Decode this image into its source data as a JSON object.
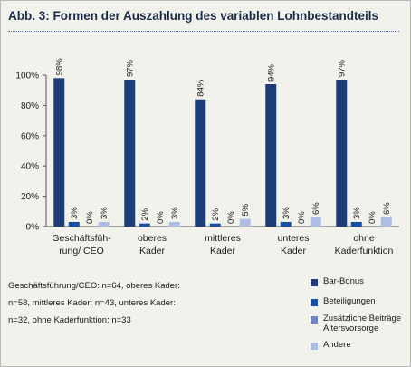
{
  "title": "Abb. 3: Formen der Auszahlung des variablen Lohnbestandteils",
  "note_lines": [
    "Geschäftsführung/CEO: n=64, oberes Kader:",
    "n=58, mittleres Kader: n=43, unteres Kader:",
    "n=32, ohne Kaderfunktion: n=33"
  ],
  "legend": [
    {
      "label": "Bar-Bonus",
      "color": "#1c3d77"
    },
    {
      "label": "Beteiligungen",
      "color": "#1a50a4"
    },
    {
      "label": "Zusätzliche Beiträge Altersvorsorge",
      "color": "#6e86c4"
    },
    {
      "label": "Andere",
      "color": "#adbde3"
    }
  ],
  "chart_data": {
    "type": "bar",
    "title": "Abb. 3: Formen der Auszahlung des variablen Lohnbestandteils",
    "categories": [
      [
        "Geschäftsfüh-",
        "rung/ CEO"
      ],
      [
        "oberes",
        "Kader"
      ],
      [
        "mittleres",
        "Kader"
      ],
      [
        "unteres",
        "Kader"
      ],
      [
        "ohne",
        "Kaderfunktion"
      ]
    ],
    "series": [
      {
        "name": "Bar-Bonus",
        "color": "#1c3d77",
        "values": [
          98,
          97,
          84,
          94,
          97
        ],
        "labels": [
          "98%",
          "97%",
          "84%",
          "94%",
          "97%"
        ]
      },
      {
        "name": "Beteiligungen",
        "color": "#1a50a4",
        "values": [
          3,
          2,
          2,
          3,
          3
        ],
        "labels": [
          "3%",
          "2%",
          "2%",
          "3%",
          "3%"
        ]
      },
      {
        "name": "Zusätzliche Beiträge Altersvorsorge",
        "color": "#6e86c4",
        "values": [
          0,
          0,
          0,
          0,
          0
        ],
        "labels": [
          "0%",
          "0%",
          "0%",
          "0%",
          "0%"
        ]
      },
      {
        "name": "Andere",
        "color": "#adbde3",
        "values": [
          3,
          3,
          5,
          6,
          6
        ],
        "labels": [
          "3%",
          "3%",
          "5%",
          "6%",
          "6%"
        ]
      }
    ],
    "yticks": [
      0,
      20,
      40,
      60,
      80,
      100
    ],
    "yticklabels": [
      "0%",
      "20%",
      "40%",
      "60%",
      "80%",
      "100%"
    ],
    "ylim": [
      0,
      100
    ],
    "xlabel": "",
    "ylabel": "",
    "grid": false,
    "legend_position": "bottom-right"
  }
}
